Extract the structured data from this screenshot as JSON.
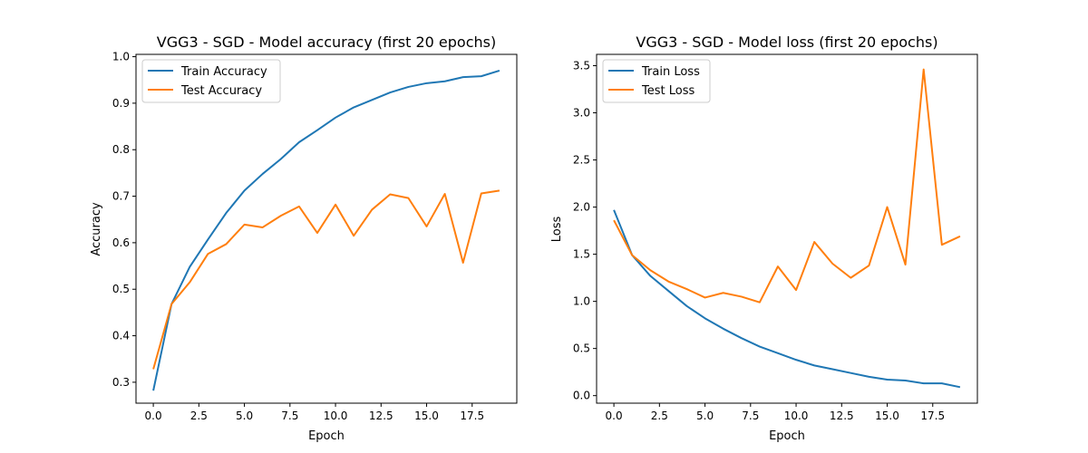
{
  "colors": {
    "train": "#1f77b4",
    "test": "#ff7f0e"
  },
  "chart_data": [
    {
      "type": "line",
      "title": "VGG3 - SGD - Model accuracy (first 20 epochs)",
      "xlabel": "Epoch",
      "ylabel": "Accuracy",
      "xlim": [
        -0.95,
        19.95
      ],
      "ylim": [
        0.255,
        1.005
      ],
      "xticks": [
        0.0,
        2.5,
        5.0,
        7.5,
        10.0,
        12.5,
        15.0,
        17.5
      ],
      "xtick_labels": [
        "0.0",
        "2.5",
        "5.0",
        "7.5",
        "10.0",
        "12.5",
        "15.0",
        "17.5"
      ],
      "yticks": [
        0.3,
        0.4,
        0.5,
        0.6,
        0.7,
        0.8,
        0.9,
        1.0
      ],
      "ytick_labels": [
        "0.3",
        "0.4",
        "0.5",
        "0.6",
        "0.7",
        "0.8",
        "0.9",
        "1.0"
      ],
      "legend_position": "upper-left",
      "grid": false,
      "x": [
        0,
        1,
        2,
        3,
        4,
        5,
        6,
        7,
        8,
        9,
        10,
        11,
        12,
        13,
        14,
        15,
        16,
        17,
        18,
        19
      ],
      "series": [
        {
          "name": "Train Accuracy",
          "color": "#1f77b4",
          "values": [
            0.282,
            0.468,
            0.548,
            0.607,
            0.664,
            0.712,
            0.748,
            0.78,
            0.816,
            0.842,
            0.869,
            0.891,
            0.907,
            0.923,
            0.935,
            0.943,
            0.947,
            0.956,
            0.958,
            0.97
          ]
        },
        {
          "name": "Test Accuracy",
          "color": "#ff7f0e",
          "values": [
            0.328,
            0.468,
            0.515,
            0.576,
            0.597,
            0.639,
            0.633,
            0.658,
            0.678,
            0.621,
            0.682,
            0.615,
            0.671,
            0.704,
            0.696,
            0.635,
            0.705,
            0.557,
            0.706,
            0.712
          ]
        }
      ]
    },
    {
      "type": "line",
      "title": "VGG3 - SGD - Model loss (first 20 epochs)",
      "xlabel": "Epoch",
      "ylabel": "Loss",
      "xlim": [
        -0.95,
        19.95
      ],
      "ylim": [
        -0.08,
        3.62
      ],
      "xticks": [
        0.0,
        2.5,
        5.0,
        7.5,
        10.0,
        12.5,
        15.0,
        17.5
      ],
      "xtick_labels": [
        "0.0",
        "2.5",
        "5.0",
        "7.5",
        "10.0",
        "12.5",
        "15.0",
        "17.5"
      ],
      "yticks": [
        0.0,
        0.5,
        1.0,
        1.5,
        2.0,
        2.5,
        3.0,
        3.5
      ],
      "ytick_labels": [
        "0.0",
        "0.5",
        "1.0",
        "1.5",
        "2.0",
        "2.5",
        "3.0",
        "3.5"
      ],
      "legend_position": "upper-left",
      "grid": false,
      "x": [
        0,
        1,
        2,
        3,
        4,
        5,
        6,
        7,
        8,
        9,
        10,
        11,
        12,
        13,
        14,
        15,
        16,
        17,
        18,
        19
      ],
      "series": [
        {
          "name": "Train Loss",
          "color": "#1f77b4",
          "values": [
            1.97,
            1.49,
            1.27,
            1.11,
            0.95,
            0.82,
            0.71,
            0.61,
            0.52,
            0.45,
            0.38,
            0.32,
            0.28,
            0.24,
            0.2,
            0.17,
            0.16,
            0.13,
            0.13,
            0.09
          ]
        },
        {
          "name": "Test Loss",
          "color": "#ff7f0e",
          "values": [
            1.86,
            1.49,
            1.33,
            1.21,
            1.13,
            1.04,
            1.09,
            1.05,
            0.99,
            1.37,
            1.12,
            1.63,
            1.4,
            1.25,
            1.38,
            2.0,
            1.39,
            3.46,
            1.6,
            1.69
          ]
        }
      ]
    }
  ]
}
